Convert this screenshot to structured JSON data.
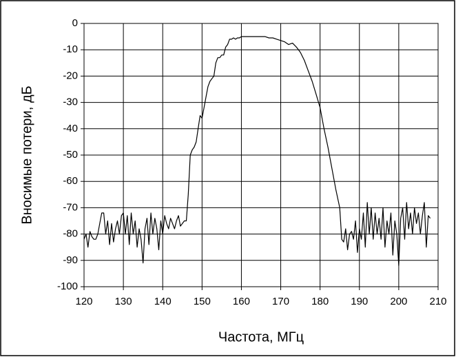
{
  "chart_data": {
    "type": "line",
    "x_label": "Частота, МГц",
    "y_label": "Вносимые потери, дБ",
    "x": [
      120,
      120.5,
      121,
      121.5,
      122,
      122.5,
      123,
      123.5,
      124,
      124.5,
      125,
      125.5,
      126,
      126.5,
      127,
      127.5,
      128,
      128.5,
      129,
      129.5,
      130,
      130.5,
      131,
      131.5,
      132,
      132.5,
      133,
      133.5,
      134,
      134.5,
      135,
      135.5,
      136,
      136.5,
      137,
      137.5,
      138,
      138.5,
      139,
      139.5,
      140,
      140.5,
      141,
      141.5,
      142,
      142.5,
      143,
      143.5,
      144,
      144.5,
      145,
      145.5,
      146,
      146.5,
      147,
      147.5,
      148,
      148.5,
      149,
      149.5,
      150,
      150.5,
      151,
      151.5,
      152,
      152.5,
      153,
      153.5,
      154,
      154.5,
      155,
      155.5,
      156,
      156.5,
      157,
      157.5,
      158,
      158.5,
      159,
      159.5,
      160,
      161,
      162,
      163,
      164,
      165,
      166,
      167,
      168,
      169,
      170,
      171,
      172,
      173,
      174,
      175,
      176,
      177,
      178,
      179,
      180,
      181,
      182,
      183,
      184,
      185,
      185.5,
      186,
      186.5,
      187,
      187.5,
      188,
      188.5,
      189,
      189.5,
      190,
      190.5,
      191,
      191.5,
      192,
      192.5,
      193,
      193.5,
      194,
      194.5,
      195,
      195.5,
      196,
      196.5,
      197,
      197.5,
      198,
      198.5,
      199,
      199.5,
      200,
      200.5,
      201,
      201.5,
      202,
      202.5,
      203,
      203.5,
      204,
      204.5,
      205,
      205.5,
      206,
      206.5,
      207,
      207.5,
      208
    ],
    "series": [
      {
        "color": "#000000",
        "values": [
          -82,
          -80,
          -85,
          -79,
          -81,
          -82,
          -82,
          -80,
          -76,
          -72,
          -72,
          -80,
          -75,
          -84,
          -76,
          -83,
          -78,
          -75,
          -80,
          -73,
          -72,
          -80,
          -73,
          -84,
          -72,
          -80,
          -75,
          -85,
          -78,
          -82,
          -91,
          -78,
          -74,
          -84,
          -72,
          -80,
          -74,
          -78,
          -86,
          -75,
          -80,
          -73,
          -76,
          -78,
          -74,
          -76,
          -78,
          -75,
          -73,
          -77,
          -76,
          -75,
          -75,
          -65,
          -50,
          -48,
          -47,
          -45,
          -40,
          -35,
          -36,
          -32,
          -28,
          -24,
          -22,
          -21,
          -20,
          -15,
          -13,
          -13,
          -12,
          -12,
          -9,
          -8,
          -6,
          -6,
          -5.5,
          -6,
          -5.5,
          -5.5,
          -5,
          -5,
          -5,
          -5,
          -5,
          -5,
          -5,
          -5.5,
          -5.5,
          -6,
          -6.5,
          -7,
          -8,
          -7.5,
          -9,
          -11,
          -14,
          -18,
          -22,
          -27,
          -32,
          -40,
          -47,
          -55,
          -63,
          -70,
          -82,
          -83,
          -78,
          -86,
          -80,
          -79,
          -82,
          -75,
          -87,
          -78,
          -82,
          -72,
          -85,
          -68,
          -80,
          -70,
          -82,
          -72,
          -80,
          -74,
          -82,
          -70,
          -85,
          -75,
          -80,
          -72,
          -88,
          -75,
          -80,
          -92,
          -74,
          -70,
          -82,
          -68,
          -78,
          -72,
          -80,
          -70,
          -76,
          -72,
          -80,
          -73,
          -68,
          -85,
          -73,
          -74
        ]
      }
    ],
    "xlim": [
      120,
      210
    ],
    "xticks": [
      120,
      130,
      140,
      150,
      160,
      170,
      180,
      190,
      200,
      210
    ],
    "ylim": [
      -100,
      0
    ],
    "yticks": [
      0,
      -10,
      -20,
      -30,
      -40,
      -50,
      -60,
      -70,
      -80,
      -90,
      -100
    ],
    "grid": true
  }
}
